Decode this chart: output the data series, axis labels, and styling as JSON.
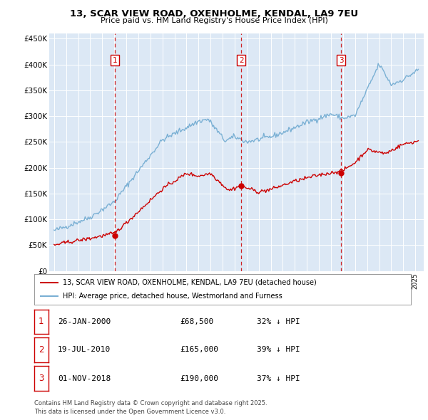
{
  "title_line1": "13, SCAR VIEW ROAD, OXENHOLME, KENDAL, LA9 7EU",
  "title_line2": "Price paid vs. HM Land Registry's House Price Index (HPI)",
  "ylim": [
    0,
    460000
  ],
  "yticks": [
    0,
    50000,
    100000,
    150000,
    200000,
    250000,
    300000,
    350000,
    400000,
    450000
  ],
  "sale_dates": [
    2000.07,
    2010.54,
    2018.83
  ],
  "sale_prices": [
    68500,
    165000,
    190000
  ],
  "sale_labels": [
    "1",
    "2",
    "3"
  ],
  "sale_color": "#cc0000",
  "hpi_color": "#7ab0d4",
  "legend_sale": "13, SCAR VIEW ROAD, OXENHOLME, KENDAL, LA9 7EU (detached house)",
  "legend_hpi": "HPI: Average price, detached house, Westmorland and Furness",
  "table_entries": [
    [
      "1",
      "26-JAN-2000",
      "£68,500",
      "32% ↓ HPI"
    ],
    [
      "2",
      "19-JUL-2010",
      "£165,000",
      "39% ↓ HPI"
    ],
    [
      "3",
      "01-NOV-2018",
      "£190,000",
      "37% ↓ HPI"
    ]
  ],
  "footnote": "Contains HM Land Registry data © Crown copyright and database right 2025.\nThis data is licensed under the Open Government Licence v3.0.",
  "plot_bg_color": "#dce8f5"
}
